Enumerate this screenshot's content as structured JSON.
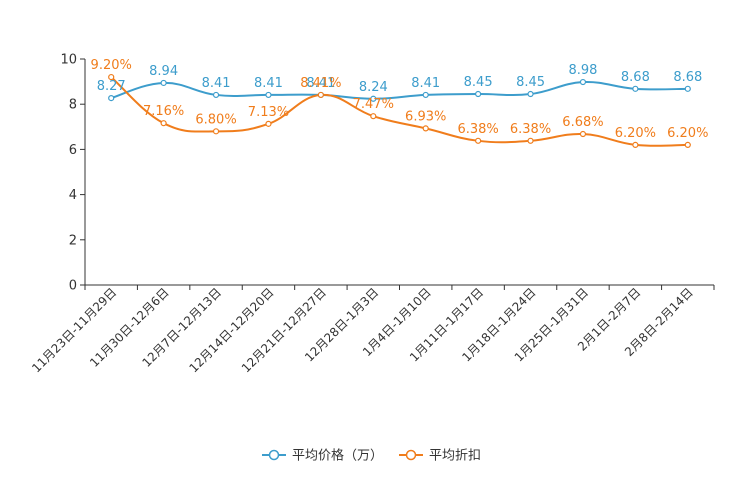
{
  "chart_data": {
    "type": "line",
    "title": "",
    "xlabel": "",
    "ylabel": "",
    "ylim": [
      0,
      10
    ],
    "yticks": [
      0,
      2,
      4,
      6,
      8,
      10
    ],
    "categories": [
      "11月23日-11月29日",
      "11月30日-12月6日",
      "12月7日-12月13日",
      "12月14日-12月20日",
      "12月21日-12月27日",
      "12月28日-1月3日",
      "1月4日-1月10日",
      "1月11日-1月17日",
      "1月18日-1月24日",
      "1月25日-1月31日",
      "2月1日-2月7日",
      "2月8日-2月14日"
    ],
    "series": [
      {
        "name": "平均价格（万）",
        "color": "#3d9dcc",
        "values": [
          8.27,
          8.94,
          8.41,
          8.41,
          8.41,
          8.24,
          8.41,
          8.45,
          8.45,
          8.98,
          8.68,
          8.68
        ],
        "labels": [
          "8.27",
          "8.94",
          "8.41",
          "8.41",
          "8.41",
          "8.24",
          "8.41",
          "8.45",
          "8.45",
          "8.98",
          "8.68",
          "8.68"
        ]
      },
      {
        "name": "平均折扣",
        "color": "#f07d1c",
        "values": [
          9.2,
          7.16,
          6.8,
          7.13,
          8.41,
          7.47,
          6.93,
          6.38,
          6.38,
          6.68,
          6.2,
          6.2
        ],
        "labels": [
          "9.20%",
          "7.16%",
          "6.80%",
          "7.13%",
          "8.41%",
          "7.47%",
          "6.93%",
          "6.38%",
          "6.38%",
          "6.68%",
          "6.20%",
          "6.20%"
        ]
      }
    ],
    "legend": "bottom-center"
  }
}
